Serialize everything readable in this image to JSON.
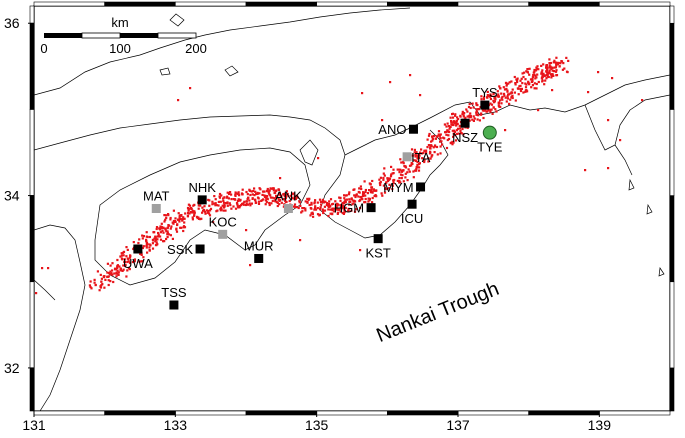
{
  "map": {
    "lon_range": [
      131,
      140
    ],
    "lat_range": [
      31.5,
      36.2
    ],
    "x_ticks": [
      {
        "value": 131,
        "label": "131"
      },
      {
        "value": 133,
        "label": "133"
      },
      {
        "value": 135,
        "label": "135"
      },
      {
        "value": 137,
        "label": "137"
      },
      {
        "value": 139,
        "label": "139"
      }
    ],
    "y_ticks": [
      {
        "value": 32,
        "label": "32"
      },
      {
        "value": 34,
        "label": "34"
      },
      {
        "value": 36,
        "label": "36"
      }
    ],
    "scale_bar": {
      "unit": "km",
      "labels": [
        "0",
        "100",
        "200"
      ]
    },
    "annotation": "Nankai Trough",
    "colors": {
      "tremor": "#e8141a",
      "station_black": "#000000",
      "station_gray": "#a0a0a0",
      "station_green": "#4caf50",
      "coast": "#000000"
    },
    "stations": [
      {
        "code": "TYS",
        "lon": 137.38,
        "lat": 35.05,
        "kind": "black",
        "label_pos": "above"
      },
      {
        "code": "ANO",
        "lon": 136.37,
        "lat": 34.77,
        "kind": "black",
        "label_pos": "left"
      },
      {
        "code": "NSZ",
        "lon": 137.1,
        "lat": 34.84,
        "kind": "black",
        "label_pos": "below"
      },
      {
        "code": "TYE",
        "lon": 137.45,
        "lat": 34.73,
        "kind": "green",
        "label_pos": "below"
      },
      {
        "code": "ITA",
        "lon": 136.28,
        "lat": 34.45,
        "kind": "gray",
        "label_pos": "right"
      },
      {
        "code": "MYM",
        "lon": 136.47,
        "lat": 34.1,
        "kind": "black",
        "label_pos": "left"
      },
      {
        "code": "HGM",
        "lon": 135.77,
        "lat": 33.86,
        "kind": "black",
        "label_pos": "left"
      },
      {
        "code": "ICU",
        "lon": 136.35,
        "lat": 33.9,
        "kind": "black",
        "label_pos": "below"
      },
      {
        "code": "KST",
        "lon": 135.87,
        "lat": 33.5,
        "kind": "black",
        "label_pos": "below"
      },
      {
        "code": "ANK",
        "lon": 134.6,
        "lat": 33.85,
        "kind": "gray",
        "label_pos": "above"
      },
      {
        "code": "NHK",
        "lon": 133.38,
        "lat": 33.95,
        "kind": "black",
        "label_pos": "above"
      },
      {
        "code": "MAT",
        "lon": 132.73,
        "lat": 33.85,
        "kind": "gray",
        "label_pos": "above"
      },
      {
        "code": "KOC",
        "lon": 133.67,
        "lat": 33.55,
        "kind": "gray",
        "label_pos": "above"
      },
      {
        "code": "SSK",
        "lon": 133.35,
        "lat": 33.38,
        "kind": "black",
        "label_pos": "left"
      },
      {
        "code": "MUR",
        "lon": 134.18,
        "lat": 33.27,
        "kind": "black",
        "label_pos": "above"
      },
      {
        "code": "UWA",
        "lon": 132.47,
        "lat": 33.38,
        "kind": "black",
        "label_pos": "below"
      },
      {
        "code": "TSS",
        "lon": 132.98,
        "lat": 32.73,
        "kind": "black",
        "label_pos": "above"
      }
    ]
  }
}
